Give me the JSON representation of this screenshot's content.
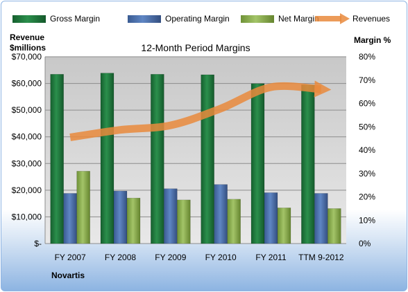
{
  "chart_data": {
    "type": "bar",
    "title": "12-Month Period Margins",
    "company": "Novartis",
    "categories": [
      "FY 2007",
      "FY 2008",
      "FY 2009",
      "FY 2010",
      "FY 2011",
      "TTM 9-2012"
    ],
    "left_axis": {
      "title_line1": "Revenue",
      "title_line2": "$millions",
      "range": [
        0,
        70000
      ],
      "ticks": [
        "$-",
        "$10,000",
        "$20,000",
        "$30,000",
        "$40,000",
        "$50,000",
        "$60,000",
        "$70,000"
      ]
    },
    "right_axis": {
      "title": "Margin %",
      "range": [
        0,
        80
      ],
      "ticks": [
        "0%",
        "10%",
        "20%",
        "30%",
        "40%",
        "50%",
        "60%",
        "70%",
        "80%"
      ]
    },
    "grid": true,
    "legend_position": "top",
    "series": [
      {
        "name": "Gross Margin",
        "kind": "bar",
        "axis": "right",
        "color": "#1e7a3e",
        "values": [
          72.5,
          73,
          72.5,
          72.3,
          68.5,
          68
        ]
      },
      {
        "name": "Operating Margin",
        "kind": "bar",
        "axis": "right",
        "color": "#4a6ea8",
        "values": [
          21.5,
          22.5,
          23.5,
          25.3,
          21.8,
          21.5
        ]
      },
      {
        "name": "Net Margin",
        "kind": "bar",
        "axis": "right",
        "color": "#8cb04c",
        "values": [
          31,
          19.5,
          18.7,
          19,
          15.3,
          15
        ]
      },
      {
        "name": "Revenues",
        "kind": "line",
        "axis": "left",
        "color": "#e98a3c",
        "values": [
          39800,
          42600,
          44300,
          50600,
          58600,
          57800
        ]
      }
    ]
  }
}
